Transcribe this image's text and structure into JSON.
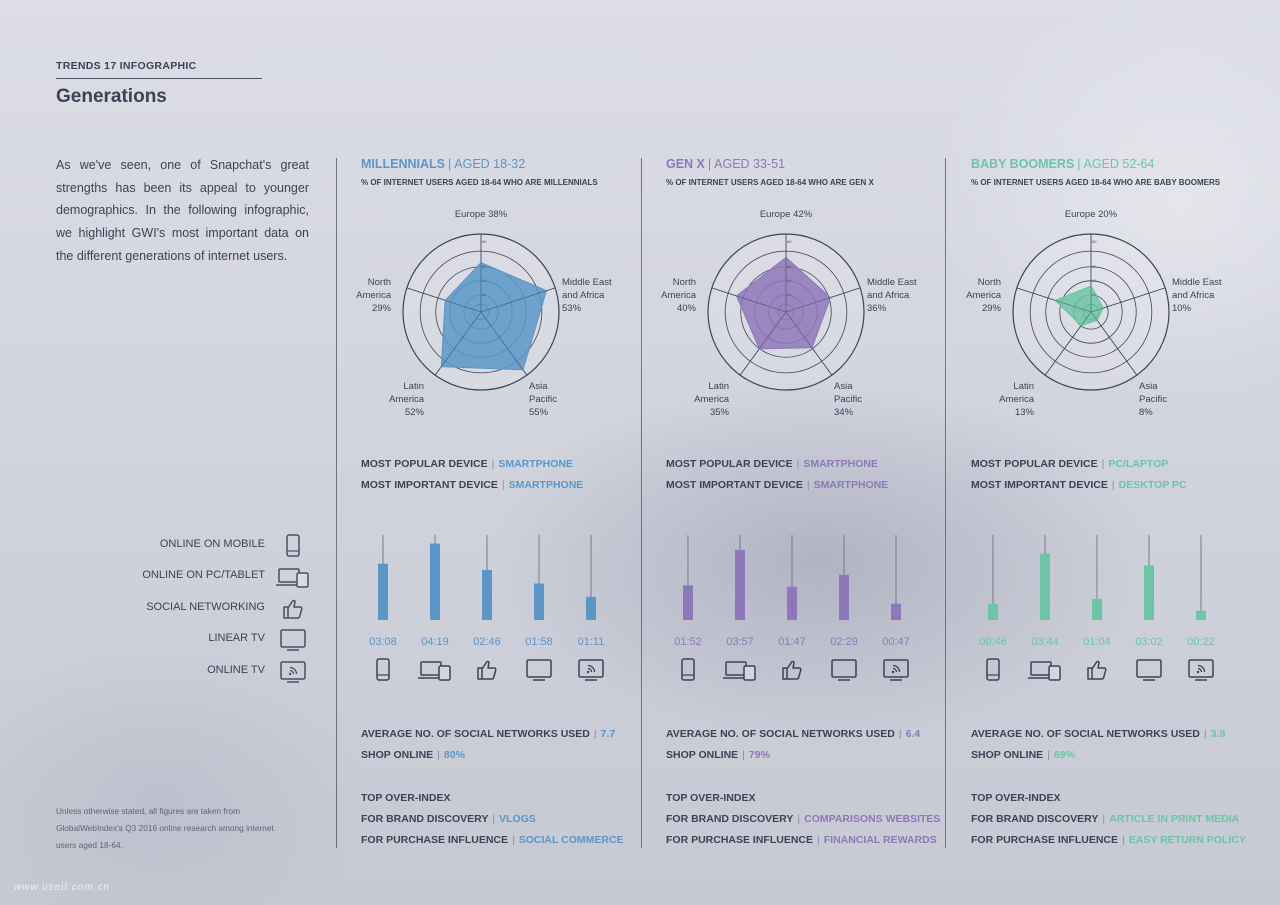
{
  "header": {
    "kicker": "TRENDS 17 INFOGRAPHIC",
    "title": "Generations"
  },
  "intro": "As we've seen, one of Snapchat's great strengths has been its appeal to younger demographics. In the following infographic, we highlight GWI's most important data on the different generations of internet users.",
  "footnote": "Unless otherwise stated, all figures are taken from GlobalWebIndex's Q3 2016 online research among internet users aged 18-64.",
  "watermark": "www.useit.com.cn",
  "legend": [
    {
      "label": "ONLINE ON MOBILE",
      "icon": "smartphone-icon"
    },
    {
      "label": "ONLINE ON PC/TABLET",
      "icon": "laptop-tablet-icon"
    },
    {
      "label": "SOCIAL NETWORKING",
      "icon": "thumbs-up-icon"
    },
    {
      "label": "LINEAR TV",
      "icon": "tv-icon"
    },
    {
      "label": "ONLINE TV",
      "icon": "online-tv-icon"
    }
  ],
  "labels": {
    "most_popular_device": "MOST POPULAR DEVICE",
    "most_important_device": "MOST IMPORTANT DEVICE",
    "avg_social_networks": "AVERAGE NO. OF SOCIAL NETWORKS USED",
    "shop_online": "SHOP ONLINE",
    "top_over_index": "TOP OVER-INDEX",
    "brand_discovery": "FOR BRAND DISCOVERY",
    "purchase_influence": "FOR PURCHASE INFLUENCE"
  },
  "colors": {
    "millennials": "#5b96c8",
    "genx": "#8e78b9",
    "boomers": "#6cc5a4",
    "text": "#3d4257"
  },
  "panels": [
    {
      "name": "MILLENNIALS",
      "age": "AGED 18-32",
      "subtitle": "% OF INTERNET USERS AGED 18-64 WHO ARE MILLENNIALS",
      "most_popular_device": "SMARTPHONE",
      "most_important_device": "SMARTPHONE",
      "avg_social_networks": "7.7",
      "shop_online": "80%",
      "brand_discovery": "VLOGS",
      "purchase_influence": "SOCIAL COMMERCE"
    },
    {
      "name": "GEN X",
      "age": "AGED 33-51",
      "subtitle": "% OF INTERNET USERS AGED 18-64 WHO ARE GEN X",
      "most_popular_device": "SMARTPHONE",
      "most_important_device": "SMARTPHONE",
      "avg_social_networks": "6.4",
      "shop_online": "79%",
      "brand_discovery": "COMPARISONS WEBSITES",
      "purchase_influence": "FINANCIAL REWARDS"
    },
    {
      "name": "BABY BOOMERS",
      "age": "AGED 52-64",
      "subtitle": "% OF INTERNET USERS AGED 18-64 WHO ARE BABY BOOMERS",
      "most_popular_device": "PC/LAPTOP",
      "most_important_device": "DESKTOP PC",
      "avg_social_networks": "3.9",
      "shop_online": "69%",
      "brand_discovery": "ARTICLE IN PRINT MEDIA",
      "purchase_influence": "EASY RETURN POLICY"
    }
  ],
  "chart_data": [
    {
      "type": "radar",
      "title": "MILLENNIALS",
      "color": "#5b96c8",
      "axes": [
        "Europe",
        "Middle East and Africa",
        "Asia Pacific",
        "Latin America",
        "North America"
      ],
      "values": [
        38,
        53,
        55,
        52,
        29
      ],
      "ticks": [
        "20",
        "40",
        "60",
        "80"
      ],
      "max": 60
    },
    {
      "type": "radar",
      "title": "GEN X",
      "color": "#8e78b9",
      "axes": [
        "Europe",
        "Middle East and Africa",
        "Asia Pacific",
        "Latin America",
        "North America"
      ],
      "values": [
        42,
        36,
        34,
        35,
        40
      ],
      "ticks": [
        "20",
        "40",
        "60",
        "80"
      ],
      "max": 60
    },
    {
      "type": "radar",
      "title": "BABY BOOMERS",
      "color": "#6cc5a4",
      "axes": [
        "Europe",
        "Middle East and Africa",
        "Asia Pacific",
        "Latin America",
        "North America"
      ],
      "values": [
        20,
        10,
        8,
        13,
        29
      ],
      "ticks": [
        "20",
        "40",
        "60",
        "80"
      ],
      "max": 60
    },
    {
      "type": "bar",
      "title": "MILLENNIALS",
      "color": "#5b96c8",
      "categories": [
        "ONLINE ON MOBILE",
        "ONLINE ON PC/TABLET",
        "SOCIAL NETWORKING",
        "LINEAR TV",
        "ONLINE TV"
      ],
      "labels": [
        "03:08",
        "04:19",
        "02:46",
        "01:58",
        "01:11"
      ],
      "values_minutes": [
        188,
        259,
        166,
        118,
        71
      ]
    },
    {
      "type": "bar",
      "title": "GEN X",
      "color": "#8e78b9",
      "categories": [
        "ONLINE ON MOBILE",
        "ONLINE ON PC/TABLET",
        "SOCIAL NETWORKING",
        "LINEAR TV",
        "ONLINE TV"
      ],
      "labels": [
        "01:52",
        "03:57",
        "01:47",
        "02:29",
        "00:47"
      ],
      "values_minutes": [
        112,
        237,
        107,
        149,
        47
      ]
    },
    {
      "type": "bar",
      "title": "BABY BOOMERS",
      "color": "#6cc5a4",
      "categories": [
        "ONLINE ON MOBILE",
        "ONLINE ON PC/TABLET",
        "SOCIAL NETWORKING",
        "LINEAR TV",
        "ONLINE TV"
      ],
      "labels": [
        "00:46",
        "03:44",
        "01:04",
        "03:02",
        "00:22"
      ],
      "values_minutes": [
        46,
        224,
        64,
        182,
        22
      ]
    }
  ]
}
